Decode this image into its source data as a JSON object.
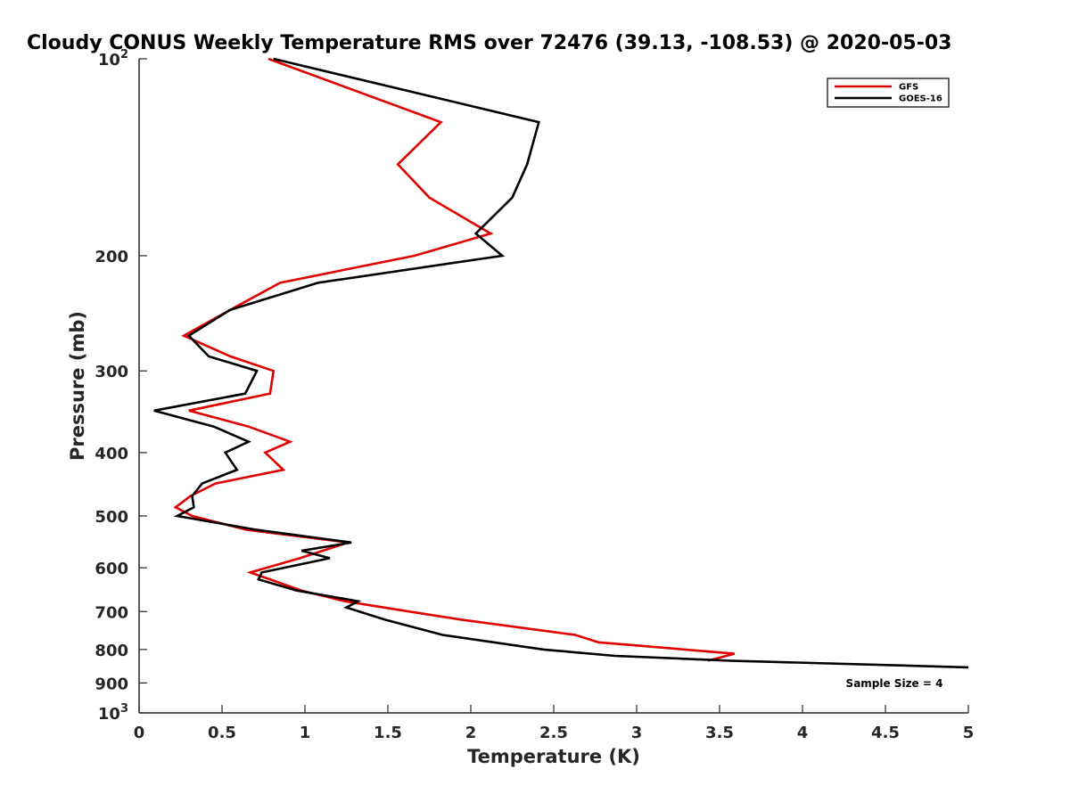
{
  "chart_data": {
    "type": "line",
    "title": "Cloudy CONUS Weekly Temperature RMS over 72476 (39.13, -108.53) @ 2020-05-03",
    "xlabel": "Temperature (K)",
    "ylabel": "Pressure (mb)",
    "xlim": [
      0,
      5
    ],
    "ylim": [
      100,
      1000
    ],
    "y_scale": "log",
    "y_reversed": true,
    "x_ticks": [
      "0",
      "0.5",
      "1",
      "1.5",
      "2",
      "2.5",
      "3",
      "3.5",
      "4",
      "4.5",
      "5"
    ],
    "y_ticks": [
      {
        "value": 100,
        "label": "10",
        "exp": "2"
      },
      {
        "value": 200,
        "label": "200"
      },
      {
        "value": 300,
        "label": "300"
      },
      {
        "value": 400,
        "label": "400"
      },
      {
        "value": 500,
        "label": "500"
      },
      {
        "value": 600,
        "label": "600"
      },
      {
        "value": 700,
        "label": "700"
      },
      {
        "value": 800,
        "label": "800"
      },
      {
        "value": 900,
        "label": "900"
      },
      {
        "value": 1000,
        "label": "10",
        "exp": "3"
      }
    ],
    "grid": false,
    "legend_position": "top-right",
    "annotation": "Sample Size = 4",
    "series": [
      {
        "name": "GFS",
        "color": "#e00000",
        "points": [
          [
            0.78,
            100
          ],
          [
            1.82,
            125
          ],
          [
            1.56,
            145
          ],
          [
            1.75,
            163
          ],
          [
            2.12,
            185
          ],
          [
            1.66,
            200
          ],
          [
            0.85,
            220
          ],
          [
            0.55,
            242
          ],
          [
            0.27,
            265
          ],
          [
            0.55,
            285
          ],
          [
            0.81,
            300
          ],
          [
            0.79,
            325
          ],
          [
            0.3,
            345
          ],
          [
            0.66,
            365
          ],
          [
            0.91,
            385
          ],
          [
            0.76,
            400
          ],
          [
            0.87,
            425
          ],
          [
            0.46,
            446
          ],
          [
            0.31,
            466
          ],
          [
            0.22,
            485
          ],
          [
            0.32,
            500
          ],
          [
            0.65,
            525
          ],
          [
            1.26,
            549
          ],
          [
            0.97,
            580
          ],
          [
            0.67,
            610
          ],
          [
            0.98,
            650
          ],
          [
            1.24,
            675
          ],
          [
            1.63,
            700
          ],
          [
            1.94,
            720
          ],
          [
            2.63,
            760
          ],
          [
            2.77,
            780
          ],
          [
            3.29,
            800
          ],
          [
            3.59,
            812
          ],
          [
            3.43,
            832
          ]
        ]
      },
      {
        "name": "GOES-16",
        "color": "#000000",
        "points": [
          [
            0.81,
            100
          ],
          [
            2.41,
            125
          ],
          [
            2.34,
            145
          ],
          [
            2.25,
            163
          ],
          [
            2.03,
            185
          ],
          [
            2.19,
            200
          ],
          [
            1.08,
            220
          ],
          [
            0.55,
            242
          ],
          [
            0.3,
            265
          ],
          [
            0.42,
            285
          ],
          [
            0.71,
            300
          ],
          [
            0.64,
            325
          ],
          [
            0.09,
            345
          ],
          [
            0.45,
            365
          ],
          [
            0.66,
            385
          ],
          [
            0.52,
            400
          ],
          [
            0.59,
            425
          ],
          [
            0.38,
            446
          ],
          [
            0.32,
            466
          ],
          [
            0.33,
            485
          ],
          [
            0.23,
            500
          ],
          [
            0.71,
            525
          ],
          [
            1.28,
            549
          ],
          [
            0.98,
            565
          ],
          [
            1.15,
            580
          ],
          [
            0.74,
            610
          ],
          [
            0.72,
            625
          ],
          [
            0.95,
            650
          ],
          [
            1.32,
            675
          ],
          [
            1.25,
            690
          ],
          [
            1.48,
            720
          ],
          [
            1.83,
            760
          ],
          [
            2.44,
            800
          ],
          [
            2.87,
            818
          ],
          [
            3.56,
            832
          ],
          [
            5.0,
            852
          ]
        ]
      }
    ]
  }
}
